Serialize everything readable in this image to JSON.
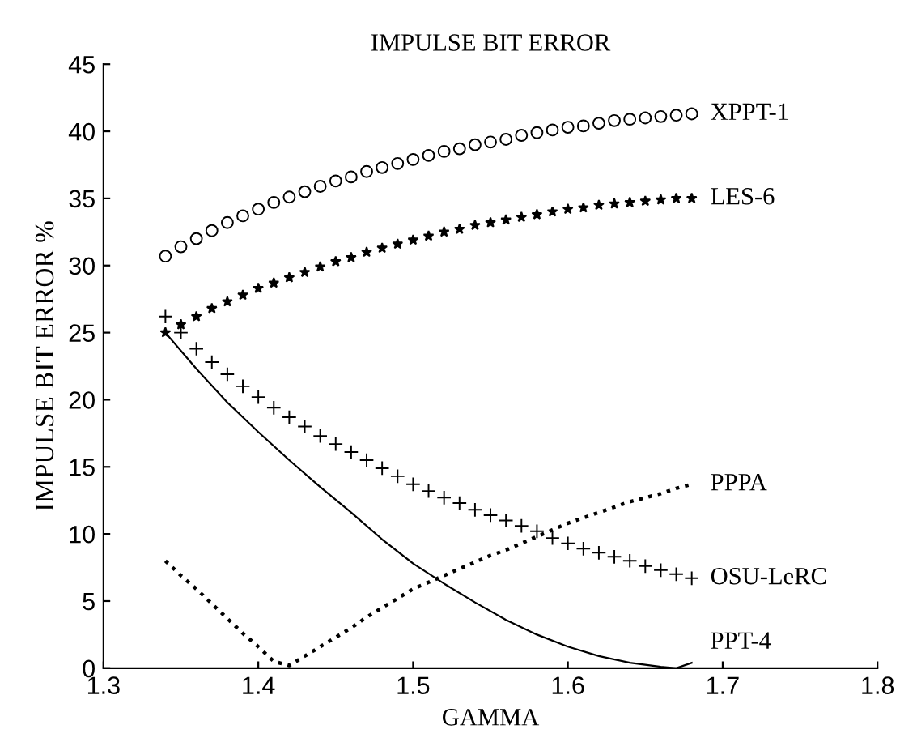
{
  "chart_data": {
    "type": "scatter",
    "title": "IMPULSE BIT ERROR",
    "xlabel": "GAMMA",
    "ylabel": "IMPULSE BIT ERROR %",
    "xlim": [
      1.3,
      1.8
    ],
    "xticks": [
      1.3,
      1.4,
      1.5,
      1.6,
      1.7,
      1.8
    ],
    "ylim": [
      0,
      45
    ],
    "yticks": [
      0,
      5,
      10,
      15,
      20,
      25,
      30,
      35,
      40,
      45
    ],
    "grid": false,
    "legend": false,
    "series": [
      {
        "name": "XPPT-1",
        "marker": "circle",
        "color": "#000000",
        "x": [
          1.34,
          1.35,
          1.36,
          1.37,
          1.38,
          1.39,
          1.4,
          1.41,
          1.42,
          1.43,
          1.44,
          1.45,
          1.46,
          1.47,
          1.48,
          1.49,
          1.5,
          1.51,
          1.52,
          1.53,
          1.54,
          1.55,
          1.56,
          1.57,
          1.58,
          1.59,
          1.6,
          1.61,
          1.62,
          1.63,
          1.64,
          1.65,
          1.66,
          1.67,
          1.68
        ],
        "values": [
          30.7,
          31.4,
          32.0,
          32.6,
          33.2,
          33.7,
          34.2,
          34.7,
          35.1,
          35.5,
          35.9,
          36.3,
          36.6,
          37.0,
          37.3,
          37.6,
          37.9,
          38.2,
          38.5,
          38.7,
          39.0,
          39.2,
          39.4,
          39.7,
          39.9,
          40.1,
          40.3,
          40.4,
          40.6,
          40.8,
          40.9,
          41.0,
          41.1,
          41.2,
          41.3
        ]
      },
      {
        "name": "LES-6",
        "marker": "star",
        "color": "#000000",
        "x": [
          1.34,
          1.35,
          1.36,
          1.37,
          1.38,
          1.39,
          1.4,
          1.41,
          1.42,
          1.43,
          1.44,
          1.45,
          1.46,
          1.47,
          1.48,
          1.49,
          1.5,
          1.51,
          1.52,
          1.53,
          1.54,
          1.55,
          1.56,
          1.57,
          1.58,
          1.59,
          1.6,
          1.61,
          1.62,
          1.63,
          1.64,
          1.65,
          1.66,
          1.67,
          1.68
        ],
        "values": [
          25.0,
          25.6,
          26.2,
          26.8,
          27.3,
          27.8,
          28.3,
          28.7,
          29.1,
          29.5,
          29.9,
          30.3,
          30.6,
          31.0,
          31.3,
          31.6,
          31.9,
          32.2,
          32.5,
          32.7,
          33.0,
          33.2,
          33.4,
          33.6,
          33.8,
          34.0,
          34.2,
          34.3,
          34.5,
          34.6,
          34.7,
          34.8,
          34.9,
          35.0,
          35.0
        ]
      },
      {
        "name": "PPPA",
        "type": "line",
        "marker": "none",
        "line_style": "dotted",
        "color": "#000000",
        "x": [
          1.34,
          1.35,
          1.36,
          1.37,
          1.38,
          1.39,
          1.4,
          1.41,
          1.42,
          1.43,
          1.44,
          1.45,
          1.46,
          1.47,
          1.48,
          1.49,
          1.5,
          1.51,
          1.52,
          1.53,
          1.54,
          1.55,
          1.56,
          1.57,
          1.58,
          1.59,
          1.6,
          1.61,
          1.62,
          1.63,
          1.64,
          1.65,
          1.66,
          1.67,
          1.68
        ],
        "values": [
          8.0,
          6.9,
          5.9,
          4.8,
          3.7,
          2.6,
          1.6,
          0.5,
          0.2,
          0.9,
          1.6,
          2.3,
          3.0,
          3.8,
          4.5,
          5.2,
          5.9,
          6.4,
          6.9,
          7.4,
          7.9,
          8.4,
          8.8,
          9.3,
          9.8,
          10.3,
          10.8,
          11.2,
          11.6,
          12.0,
          12.4,
          12.7,
          13.0,
          13.4,
          13.7
        ]
      },
      {
        "name": "OSU-LeRC",
        "marker": "cross",
        "color": "#000000",
        "x": [
          1.34,
          1.35,
          1.36,
          1.37,
          1.38,
          1.39,
          1.4,
          1.41,
          1.42,
          1.43,
          1.44,
          1.45,
          1.46,
          1.47,
          1.48,
          1.49,
          1.5,
          1.51,
          1.52,
          1.53,
          1.54,
          1.55,
          1.56,
          1.57,
          1.58,
          1.59,
          1.6,
          1.61,
          1.62,
          1.63,
          1.64,
          1.65,
          1.66,
          1.67,
          1.68
        ],
        "values": [
          26.2,
          25.0,
          23.8,
          22.8,
          21.9,
          21.0,
          20.2,
          19.4,
          18.7,
          18.0,
          17.3,
          16.7,
          16.1,
          15.5,
          14.9,
          14.3,
          13.7,
          13.2,
          12.7,
          12.3,
          11.8,
          11.4,
          11.0,
          10.6,
          10.2,
          9.7,
          9.3,
          8.9,
          8.6,
          8.3,
          8.0,
          7.6,
          7.3,
          7.0,
          6.7
        ]
      },
      {
        "name": "PPT-4",
        "type": "line",
        "marker": "none",
        "line_style": "solid",
        "color": "#000000",
        "x": [
          1.34,
          1.36,
          1.38,
          1.4,
          1.42,
          1.44,
          1.46,
          1.48,
          1.5,
          1.52,
          1.54,
          1.56,
          1.58,
          1.6,
          1.62,
          1.64,
          1.66,
          1.67,
          1.68
        ],
        "values": [
          25.0,
          22.3,
          19.8,
          17.6,
          15.5,
          13.5,
          11.6,
          9.6,
          7.8,
          6.3,
          4.9,
          3.6,
          2.5,
          1.6,
          0.9,
          0.4,
          0.1,
          0.0,
          0.4
        ]
      }
    ]
  }
}
